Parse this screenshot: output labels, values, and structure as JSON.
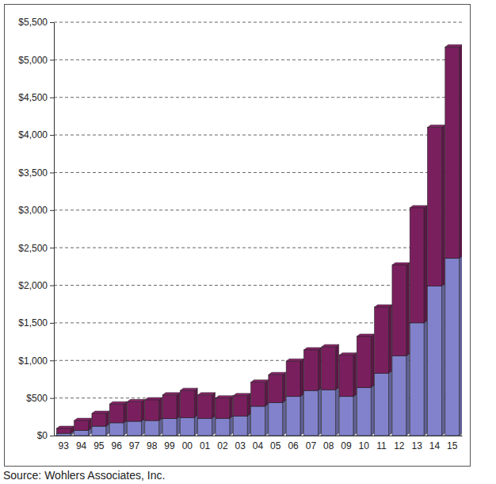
{
  "chart_data": {
    "type": "bar",
    "stacked": true,
    "grid": true,
    "source": "Source: Wohlers Associates, Inc.",
    "categories": [
      "93",
      "94",
      "95",
      "96",
      "97",
      "98",
      "99",
      "00",
      "01",
      "02",
      "03",
      "04",
      "05",
      "06",
      "07",
      "08",
      "09",
      "10",
      "11",
      "12",
      "13",
      "14",
      "15"
    ],
    "series": [
      {
        "color": "#8282cc",
        "values": [
          30,
          70,
          125,
          170,
          190,
          200,
          225,
          240,
          230,
          230,
          260,
          390,
          440,
          520,
          600,
          610,
          520,
          640,
          830,
          1060,
          1500,
          1990,
          2360
        ]
      },
      {
        "color": "#7a1f5e",
        "values": [
          65,
          130,
          170,
          250,
          260,
          275,
          315,
          360,
          310,
          270,
          270,
          320,
          370,
          470,
          540,
          570,
          550,
          680,
          880,
          1210,
          1530,
          2110,
          2810
        ]
      }
    ],
    "ylim": [
      0,
      5500
    ],
    "yticks": [
      {
        "value": 0,
        "label": "$0"
      },
      {
        "value": 500,
        "label": "$500"
      },
      {
        "value": 1000,
        "label": "$1,000"
      },
      {
        "value": 1500,
        "label": "$1,500"
      },
      {
        "value": 2000,
        "label": "$2,000"
      },
      {
        "value": 2500,
        "label": "$2,500"
      },
      {
        "value": 3000,
        "label": "$3,000"
      },
      {
        "value": 3500,
        "label": "$3,500"
      },
      {
        "value": 4000,
        "label": "$4,000"
      },
      {
        "value": 4500,
        "label": "$4,500"
      },
      {
        "value": 5000,
        "label": "$5,000"
      },
      {
        "value": 5500,
        "label": "$5,500"
      }
    ]
  }
}
